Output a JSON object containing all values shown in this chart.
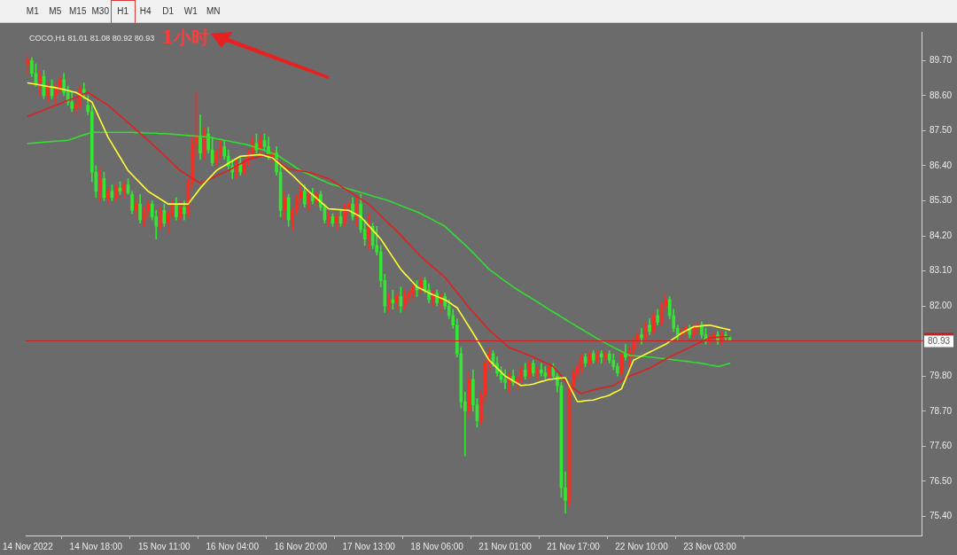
{
  "chart_data": {
    "type": "candlestick",
    "title": "COCO,H1 81.01 81.08 80.92 80.93",
    "annotations": [
      "M1",
      "M5",
      "M15",
      "M30",
      "H1",
      "H4",
      "D1",
      "W1",
      "MN",
      "1小时"
    ],
    "categories": [
      "14 Nov 2022",
      null,
      null,
      null,
      null,
      null,
      null,
      null,
      null,
      null,
      null,
      null,
      null,
      null,
      null,
      null,
      null,
      "14 Nov 18:00",
      null,
      null,
      null,
      null,
      null,
      null,
      null,
      null,
      null,
      null,
      null,
      null,
      null,
      null,
      null,
      null,
      "15 Nov 11:00",
      null,
      null,
      null,
      null,
      null,
      null,
      null,
      null,
      null,
      null,
      null,
      null,
      null,
      null,
      null,
      null,
      "16 Nov 04:00",
      null,
      null,
      null,
      null,
      null,
      null,
      null,
      null,
      null,
      null,
      null,
      null,
      null,
      null,
      null,
      null,
      "16 Nov 20:00",
      null,
      null,
      null,
      null,
      null,
      null,
      null,
      null,
      null,
      null,
      null,
      null,
      null,
      null,
      null,
      null,
      "17 Nov 13:00",
      null,
      null,
      null,
      null,
      null,
      null,
      null,
      null,
      null,
      null,
      null,
      null,
      null,
      null,
      null,
      null,
      "18 Nov 06:00",
      null,
      null,
      null,
      null,
      null,
      null,
      null,
      null,
      null,
      null,
      null,
      null,
      null,
      null,
      null,
      null,
      "21 Nov 01:00",
      null,
      null,
      null,
      null,
      null,
      null,
      null,
      null,
      null,
      null,
      null,
      null,
      null,
      null,
      null,
      null,
      "21 Nov 17:00",
      null,
      null,
      null,
      null,
      null,
      null,
      null,
      null,
      null,
      null,
      null,
      null,
      null,
      null,
      null,
      null,
      "22 Nov 10:00",
      null,
      null,
      null,
      null,
      null,
      null,
      null,
      null,
      null,
      null,
      null,
      null,
      null,
      null,
      null,
      null,
      "23 Nov 03:00",
      null,
      null,
      null,
      null,
      null
    ],
    "ohlc": [
      [
        89.6,
        89.9,
        89.3,
        89.7
      ],
      [
        89.7,
        89.8,
        89.2,
        89.3
      ],
      [
        89.3,
        89.6,
        88.9,
        89.0
      ],
      [
        89.0,
        89.4,
        88.6,
        89.2
      ],
      [
        89.2,
        89.4,
        88.5,
        88.6
      ],
      [
        88.6,
        89.0,
        88.4,
        88.9
      ],
      [
        88.9,
        89.1,
        88.5,
        88.6
      ],
      [
        88.6,
        89.0,
        88.3,
        88.8
      ],
      [
        88.8,
        89.2,
        88.7,
        89.1
      ],
      [
        89.1,
        89.3,
        88.6,
        88.7
      ],
      [
        88.7,
        88.9,
        88.3,
        88.4
      ],
      [
        88.4,
        88.7,
        88.1,
        88.2
      ],
      [
        88.2,
        88.5,
        88.0,
        88.3
      ],
      [
        88.3,
        88.9,
        88.2,
        88.8
      ],
      [
        88.8,
        89.0,
        88.5,
        88.7
      ],
      [
        88.3,
        88.6,
        88.0,
        88.1
      ],
      [
        88.1,
        88.3,
        85.9,
        86.2
      ],
      [
        86.2,
        86.4,
        85.4,
        85.6
      ],
      [
        85.6,
        86.3,
        85.3,
        86.0
      ],
      [
        86.0,
        86.2,
        85.3,
        85.4
      ],
      [
        85.4,
        85.7,
        85.2,
        85.6
      ],
      [
        85.6,
        85.8,
        85.3,
        85.4
      ],
      [
        85.4,
        85.8,
        85.3,
        85.7
      ],
      [
        85.7,
        85.9,
        85.5,
        85.6
      ],
      [
        85.6,
        85.9,
        85.4,
        85.8
      ],
      [
        85.8,
        86.0,
        85.5,
        85.55
      ],
      [
        85.5,
        85.6,
        84.9,
        85.0
      ],
      [
        85.0,
        85.4,
        84.8,
        85.2
      ],
      [
        85.2,
        85.5,
        84.6,
        84.7
      ],
      [
        84.7,
        85.1,
        84.5,
        85.0
      ],
      [
        85.0,
        85.3,
        84.8,
        85.2
      ],
      [
        85.2,
        85.3,
        84.7,
        84.8
      ],
      [
        84.8,
        85.0,
        84.1,
        84.5
      ],
      [
        84.5,
        85.1,
        84.4,
        85.0
      ],
      [
        85.0,
        85.2,
        84.5,
        84.6
      ],
      [
        84.6,
        85.0,
        84.3,
        84.9
      ],
      [
        84.9,
        85.3,
        84.8,
        85.2
      ],
      [
        85.2,
        85.4,
        84.7,
        84.8
      ],
      [
        84.8,
        85.3,
        84.6,
        85.1
      ],
      [
        85.1,
        85.3,
        84.7,
        84.9
      ],
      [
        84.9,
        86.0,
        84.8,
        85.9
      ],
      [
        85.9,
        87.3,
        85.7,
        87.1
      ],
      [
        87.1,
        88.7,
        86.7,
        87.3
      ],
      [
        87.3,
        88.0,
        86.6,
        86.8
      ],
      [
        86.8,
        87.6,
        86.6,
        87.4
      ],
      [
        87.4,
        87.6,
        86.8,
        86.9
      ],
      [
        86.9,
        87.3,
        86.4,
        86.5
      ],
      [
        86.5,
        86.9,
        86.4,
        86.8
      ],
      [
        86.8,
        87.2,
        86.6,
        87.0
      ],
      [
        87.0,
        87.2,
        86.6,
        86.7
      ],
      [
        86.7,
        86.9,
        86.3,
        86.4
      ],
      [
        86.4,
        86.6,
        86.0,
        86.2
      ],
      [
        86.2,
        86.6,
        86.0,
        86.5
      ],
      [
        86.5,
        86.7,
        86.1,
        86.2
      ],
      [
        86.2,
        86.6,
        86.1,
        86.5
      ],
      [
        86.5,
        86.9,
        86.4,
        86.8
      ],
      [
        86.8,
        87.3,
        86.6,
        87.1
      ],
      [
        87.1,
        87.4,
        86.8,
        86.9
      ],
      [
        86.9,
        87.4,
        86.7,
        87.2
      ],
      [
        87.2,
        87.4,
        86.9,
        87.0
      ],
      [
        87.0,
        87.3,
        86.6,
        86.7
      ],
      [
        86.7,
        86.9,
        86.5,
        86.8
      ],
      [
        86.8,
        87.0,
        86.1,
        86.2
      ],
      [
        86.2,
        86.4,
        84.8,
        85.0
      ],
      [
        85.0,
        85.6,
        84.7,
        85.4
      ],
      [
        85.4,
        85.5,
        84.5,
        84.7
      ],
      [
        84.7,
        85.1,
        84.4,
        85.0
      ],
      [
        85.0,
        85.5,
        84.9,
        85.4
      ],
      [
        85.4,
        85.8,
        85.2,
        85.6
      ],
      [
        85.6,
        85.8,
        85.1,
        85.2
      ],
      [
        85.2,
        85.6,
        85.0,
        85.5
      ],
      [
        85.5,
        85.7,
        85.2,
        85.3
      ],
      [
        85.3,
        85.6,
        85.1,
        85.5
      ],
      [
        85.5,
        85.6,
        85.0,
        85.1
      ],
      [
        85.1,
        85.2,
        84.6,
        84.7
      ],
      [
        84.7,
        85.0,
        84.5,
        84.8
      ],
      [
        84.8,
        84.9,
        84.5,
        84.6
      ],
      [
        84.6,
        84.9,
        84.4,
        84.8
      ],
      [
        84.8,
        85.0,
        84.5,
        84.6
      ],
      [
        84.6,
        85.2,
        84.5,
        85.1
      ],
      [
        85.1,
        85.3,
        84.9,
        85.2
      ],
      [
        85.2,
        85.4,
        84.7,
        84.8
      ],
      [
        84.8,
        85.4,
        84.5,
        85.2
      ],
      [
        85.2,
        85.5,
        84.3,
        84.4
      ],
      [
        84.4,
        84.7,
        83.9,
        84.1
      ],
      [
        84.1,
        84.9,
        83.8,
        84.5
      ],
      [
        84.5,
        84.6,
        83.8,
        83.9
      ],
      [
        83.9,
        84.5,
        83.6,
        83.7
      ],
      [
        83.7,
        83.9,
        82.6,
        82.8
      ],
      [
        82.8,
        83.0,
        81.8,
        82.0
      ],
      [
        82.0,
        82.4,
        81.8,
        82.2
      ],
      [
        82.2,
        82.5,
        81.9,
        82.1
      ],
      [
        82.1,
        82.4,
        81.9,
        82.3
      ],
      [
        82.3,
        82.6,
        81.8,
        82.0
      ],
      [
        82.0,
        82.5,
        81.9,
        82.3
      ],
      [
        82.3,
        82.5,
        82.1,
        82.4
      ],
      [
        82.4,
        82.7,
        82.2,
        82.6
      ],
      [
        82.6,
        82.8,
        82.3,
        82.5
      ],
      [
        82.5,
        82.9,
        82.4,
        82.8
      ],
      [
        82.8,
        82.9,
        82.4,
        82.5
      ],
      [
        82.5,
        82.7,
        82.1,
        82.2
      ],
      [
        82.2,
        82.5,
        82.0,
        82.4
      ],
      [
        82.4,
        82.5,
        82.0,
        82.1
      ],
      [
        82.1,
        82.4,
        81.8,
        82.3
      ],
      [
        82.3,
        82.4,
        81.9,
        82.0
      ],
      [
        82.0,
        82.2,
        81.6,
        81.7
      ],
      [
        81.7,
        81.9,
        81.3,
        81.4
      ],
      [
        81.4,
        81.6,
        80.4,
        80.5
      ],
      [
        80.5,
        80.7,
        78.8,
        79.0
      ],
      [
        79.0,
        79.3,
        77.3,
        78.7
      ],
      [
        78.7,
        79.9,
        78.5,
        79.7
      ],
      [
        79.7,
        80.0,
        78.7,
        78.9
      ],
      [
        78.9,
        79.1,
        78.2,
        78.4
      ],
      [
        78.4,
        79.3,
        78.3,
        79.2
      ],
      [
        79.2,
        80.3,
        79.0,
        80.2
      ],
      [
        80.2,
        80.7,
        80.0,
        80.5
      ],
      [
        80.5,
        80.6,
        80.1,
        80.2
      ],
      [
        80.2,
        80.4,
        79.8,
        79.9
      ],
      [
        79.9,
        80.1,
        79.6,
        79.7
      ],
      [
        79.7,
        80.0,
        79.4,
        79.6
      ],
      [
        79.6,
        79.9,
        79.3,
        79.8
      ],
      [
        79.8,
        80.0,
        79.5,
        79.6
      ],
      [
        79.6,
        79.8,
        79.4,
        79.7
      ],
      [
        79.7,
        80.1,
        79.6,
        80.0
      ],
      [
        80.0,
        80.2,
        79.7,
        79.8
      ],
      [
        79.8,
        80.3,
        79.7,
        80.2
      ],
      [
        80.2,
        80.3,
        79.8,
        79.9
      ],
      [
        79.9,
        80.1,
        79.7,
        80.0
      ],
      [
        80.0,
        80.2,
        79.8,
        79.9
      ],
      [
        79.9,
        80.1,
        79.7,
        79.8
      ],
      [
        79.8,
        80.2,
        79.7,
        80.1
      ],
      [
        80.1,
        80.2,
        79.7,
        79.8
      ],
      [
        79.8,
        79.9,
        79.3,
        79.5
      ],
      [
        79.5,
        79.6,
        76.0,
        76.3
      ],
      [
        76.3,
        76.8,
        75.5,
        75.9
      ],
      [
        75.9,
        79.6,
        75.7,
        79.5
      ],
      [
        79.5,
        80.0,
        79.3,
        79.9
      ],
      [
        79.9,
        80.2,
        79.7,
        80.1
      ],
      [
        80.1,
        80.5,
        79.9,
        80.4
      ],
      [
        80.4,
        80.5,
        80.1,
        80.2
      ],
      [
        80.2,
        80.6,
        80.1,
        80.5
      ],
      [
        80.5,
        80.6,
        80.2,
        80.3
      ],
      [
        80.3,
        80.6,
        80.2,
        80.5
      ],
      [
        80.5,
        80.6,
        80.2,
        80.4
      ],
      [
        80.4,
        80.6,
        80.2,
        80.5
      ],
      [
        80.5,
        80.6,
        80.2,
        80.3
      ],
      [
        80.3,
        80.5,
        80.0,
        80.1
      ],
      [
        80.1,
        80.2,
        79.8,
        79.9
      ],
      [
        79.9,
        80.6,
        79.8,
        80.5
      ],
      [
        80.5,
        80.8,
        80.3,
        80.4
      ],
      [
        80.4,
        80.7,
        80.0,
        80.6
      ],
      [
        80.6,
        81.0,
        80.4,
        80.9
      ],
      [
        80.9,
        81.2,
        80.7,
        81.1
      ],
      [
        81.1,
        81.3,
        80.8,
        81.0
      ],
      [
        81.0,
        81.5,
        80.9,
        81.4
      ],
      [
        81.4,
        81.6,
        81.1,
        81.2
      ],
      [
        81.2,
        81.8,
        81.1,
        81.7
      ],
      [
        81.7,
        81.9,
        81.4,
        81.5
      ],
      [
        81.5,
        82.1,
        81.4,
        82.0
      ],
      [
        82.0,
        82.4,
        81.9,
        82.2
      ],
      [
        82.2,
        82.3,
        81.6,
        81.7
      ],
      [
        81.7,
        81.9,
        81.2,
        81.3
      ],
      [
        81.3,
        81.4,
        80.9,
        81.1
      ],
      [
        81.1,
        81.3,
        80.9,
        81.2
      ],
      [
        81.2,
        81.4,
        81.0,
        81.3
      ],
      [
        81.3,
        81.4,
        81.0,
        81.1
      ],
      [
        81.1,
        81.4,
        81.0,
        81.3
      ],
      [
        81.3,
        81.5,
        81.1,
        81.4
      ],
      [
        81.4,
        81.5,
        81.0,
        81.1
      ],
      [
        81.1,
        81.3,
        80.8,
        80.9
      ],
      [
        80.9,
        81.1,
        80.8,
        81.0
      ],
      [
        81.0,
        81.2,
        80.9,
        81.1
      ],
      [
        81.1,
        81.2,
        80.8,
        80.9
      ],
      [
        80.9,
        81.2,
        80.8,
        81.1
      ],
      [
        81.1,
        81.2,
        80.9,
        81.01
      ],
      [
        81.01,
        81.08,
        80.92,
        80.93
      ]
    ],
    "colors": [
      "#ff2b1f",
      "#33e633",
      "#33e633",
      "#ff2b1f",
      "#33e633",
      "#ff2b1f",
      "#33e633",
      "#ff2b1f",
      "#ff2b1f",
      "#33e633",
      "#33e633",
      "#33e633",
      "#ff2b1f",
      "#ff2b1f",
      "#33e633",
      "#33e633",
      "#33e633",
      "#33e633",
      "#ff2b1f",
      "#33e633",
      "#ff2b1f",
      "#33e633",
      "#ff2b1f",
      "#33e633",
      "#ff2b1f",
      "#33e633",
      "#33e633",
      "#ff2b1f",
      "#33e633",
      "#ff2b1f",
      "#ff2b1f",
      "#33e633",
      "#33e633",
      "#ff2b1f",
      "#33e633",
      "#ff2b1f",
      "#ff2b1f",
      "#33e633",
      "#ff2b1f",
      "#33e633",
      "#ff2b1f",
      "#ff2b1f",
      "#ff2b1f",
      "#33e633",
      "#ff2b1f",
      "#33e633",
      "#33e633",
      "#ff2b1f",
      "#ff2b1f",
      "#33e633",
      "#33e633",
      "#33e633",
      "#ff2b1f",
      "#33e633",
      "#ff2b1f",
      "#ff2b1f",
      "#ff2b1f",
      "#33e633",
      "#ff2b1f",
      "#33e633",
      "#33e633",
      "#ff2b1f",
      "#33e633",
      "#33e633",
      "#ff2b1f",
      "#33e633",
      "#ff2b1f",
      "#ff2b1f",
      "#ff2b1f",
      "#33e633",
      "#ff2b1f",
      "#33e633",
      "#ff2b1f",
      "#33e633",
      "#33e633",
      "#ff2b1f",
      "#33e633",
      "#ff2b1f",
      "#33e633",
      "#ff2b1f",
      "#ff2b1f",
      "#33e633",
      "#ff2b1f",
      "#33e633",
      "#33e633",
      "#ff2b1f",
      "#33e633",
      "#33e633",
      "#33e633",
      "#33e633",
      "#ff2b1f",
      "#33e633",
      "#ff2b1f",
      "#33e633",
      "#ff2b1f",
      "#ff2b1f",
      "#ff2b1f",
      "#33e633",
      "#ff2b1f",
      "#33e633",
      "#33e633",
      "#ff2b1f",
      "#33e633",
      "#ff2b1f",
      "#33e633",
      "#33e633",
      "#33e633",
      "#33e633",
      "#33e633",
      "#33e633",
      "#ff2b1f",
      "#33e633",
      "#33e633",
      "#ff2b1f",
      "#ff2b1f",
      "#ff2b1f",
      "#33e633",
      "#33e633",
      "#33e633",
      "#33e633",
      "#ff2b1f",
      "#33e633",
      "#ff2b1f",
      "#ff2b1f",
      "#33e633",
      "#ff2b1f",
      "#33e633",
      "#ff2b1f",
      "#33e633",
      "#33e633",
      "#ff2b1f",
      "#33e633",
      "#33e633",
      "#33e633",
      "#33e633",
      "#ff2b1f",
      "#ff2b1f",
      "#ff2b1f",
      "#ff2b1f",
      "#33e633",
      "#ff2b1f",
      "#33e633",
      "#ff2b1f",
      "#33e633",
      "#ff2b1f",
      "#33e633",
      "#33e633",
      "#33e633",
      "#ff2b1f",
      "#33e633",
      "#ff2b1f",
      "#ff2b1f",
      "#ff2b1f",
      "#33e633",
      "#ff2b1f",
      "#33e633",
      "#ff2b1f",
      "#33e633",
      "#ff2b1f",
      "#ff2b1f",
      "#33e633",
      "#33e633",
      "#33e633",
      "#ff2b1f",
      "#ff2b1f",
      "#33e633",
      "#ff2b1f",
      "#ff2b1f",
      "#33e633",
      "#33e633",
      "#ff2b1f",
      "#ff2b1f",
      "#33e633",
      "#ff2b1f",
      "#33e633",
      "#33e633"
    ],
    "series": [
      {
        "type": "line",
        "color": "#ffff33",
        "values": [
          89.0,
          88.98,
          88.96,
          88.94,
          88.91,
          88.89,
          88.87,
          88.85,
          88.82,
          88.79,
          88.76,
          88.73,
          88.7,
          88.63,
          88.55,
          88.48,
          88.4,
          88.13,
          87.85,
          87.58,
          87.3,
          87.09,
          86.88,
          86.67,
          86.46,
          86.25,
          86.12,
          85.99,
          85.86,
          85.73,
          85.6,
          85.52,
          85.44,
          85.36,
          85.28,
          85.2,
          85.2,
          85.2,
          85.2,
          85.2,
          85.2,
          85.37,
          85.53,
          85.7,
          85.84,
          85.98,
          86.11,
          86.25,
          86.33,
          86.4,
          86.48,
          86.55,
          86.63,
          86.7,
          86.71,
          86.72,
          86.73,
          86.74,
          86.75,
          86.72,
          86.68,
          86.65,
          86.54,
          86.43,
          86.32,
          86.21,
          86.1,
          85.98,
          85.85,
          85.73,
          85.6,
          85.49,
          85.38,
          85.27,
          85.16,
          85.05,
          85.04,
          85.03,
          85.02,
          85.01,
          85.0,
          84.93,
          84.87,
          84.8,
          84.66,
          84.52,
          84.38,
          84.24,
          84.1,
          83.91,
          83.72,
          83.53,
          83.34,
          83.15,
          83.01,
          82.88,
          82.74,
          82.6,
          82.54,
          82.48,
          82.41,
          82.35,
          82.3,
          82.25,
          82.2,
          82.12,
          82.03,
          81.95,
          81.75,
          81.55,
          81.35,
          81.15,
          80.94,
          80.73,
          80.51,
          80.3,
          80.18,
          80.05,
          79.93,
          79.8,
          79.73,
          79.65,
          79.58,
          79.5,
          79.52,
          79.53,
          79.55,
          79.59,
          79.63,
          79.66,
          79.7,
          79.71,
          79.73,
          79.74,
          79.75,
          79.5,
          79.25,
          79.0,
          79.01,
          79.03,
          79.04,
          79.05,
          79.09,
          79.13,
          79.16,
          79.2,
          79.27,
          79.33,
          79.4,
          79.7,
          80.0,
          80.3,
          80.36,
          80.43,
          80.49,
          80.55,
          80.61,
          80.68,
          80.74,
          80.8,
          80.89,
          80.98,
          81.06,
          81.15,
          81.22,
          81.28,
          81.35,
          81.36,
          81.38,
          81.39,
          81.4,
          81.37,
          81.34,
          81.31,
          81.28,
          81.25
        ]
      },
      {
        "type": "line",
        "color": "#e02020",
        "values": [
          87.95,
          88.0,
          88.05,
          88.1,
          88.15,
          88.2,
          88.25,
          88.3,
          88.35,
          88.4,
          88.45,
          88.5,
          88.55,
          88.6,
          88.65,
          88.7,
          88.62,
          88.54,
          88.46,
          88.38,
          88.3,
          88.19,
          88.08,
          87.97,
          87.86,
          87.75,
          87.64,
          87.53,
          87.42,
          87.31,
          87.2,
          87.08,
          86.96,
          86.84,
          86.73,
          86.61,
          86.49,
          86.37,
          86.25,
          86.17,
          86.09,
          86.01,
          85.93,
          85.85,
          85.91,
          85.96,
          86.02,
          86.08,
          86.14,
          86.19,
          86.25,
          86.32,
          86.39,
          86.46,
          86.53,
          86.6,
          86.63,
          86.66,
          86.69,
          86.72,
          86.75,
          86.66,
          86.57,
          86.48,
          86.39,
          86.3,
          86.28,
          86.26,
          86.24,
          86.22,
          86.2,
          86.16,
          86.12,
          86.08,
          86.04,
          86.0,
          85.92,
          85.84,
          85.76,
          85.68,
          85.6,
          85.52,
          85.44,
          85.36,
          85.28,
          85.2,
          85.08,
          84.96,
          84.84,
          84.71,
          84.59,
          84.47,
          84.35,
          84.22,
          84.08,
          83.95,
          83.82,
          83.68,
          83.55,
          83.44,
          83.33,
          83.22,
          83.12,
          83.01,
          82.9,
          82.74,
          82.58,
          82.43,
          82.27,
          82.11,
          81.95,
          81.81,
          81.67,
          81.53,
          81.39,
          81.25,
          81.14,
          81.03,
          80.92,
          80.81,
          80.7,
          80.65,
          80.6,
          80.55,
          80.5,
          80.45,
          80.4,
          80.34,
          80.28,
          80.22,
          80.16,
          80.1,
          79.95,
          79.8,
          79.65,
          79.5,
          79.42,
          79.33,
          79.25,
          79.29,
          79.33,
          79.36,
          79.4,
          79.43,
          79.45,
          79.48,
          79.5,
          79.58,
          79.65,
          79.73,
          79.8,
          79.85,
          79.9,
          79.95,
          80.0,
          80.05,
          80.12,
          80.19,
          80.26,
          80.33,
          80.4,
          80.46,
          80.52,
          80.58,
          80.64,
          80.7,
          80.76,
          80.82,
          80.88,
          80.94,
          81.0,
          81.01,
          81.02,
          81.03,
          81.04,
          81.05
        ]
      },
      {
        "type": "line",
        "color": "#33dd33",
        "values": [
          87.1,
          87.11,
          87.12,
          87.13,
          87.14,
          87.15,
          87.16,
          87.17,
          87.18,
          87.19,
          87.2,
          87.24,
          87.28,
          87.33,
          87.37,
          87.41,
          87.45,
          87.45,
          87.45,
          87.45,
          87.45,
          87.45,
          87.45,
          87.45,
          87.45,
          87.45,
          87.45,
          87.44,
          87.44,
          87.43,
          87.43,
          87.42,
          87.42,
          87.41,
          87.41,
          87.4,
          87.39,
          87.38,
          87.37,
          87.36,
          87.35,
          87.34,
          87.33,
          87.32,
          87.31,
          87.3,
          87.28,
          87.25,
          87.23,
          87.2,
          87.18,
          87.15,
          87.13,
          87.1,
          87.08,
          87.05,
          87.01,
          86.96,
          86.92,
          86.88,
          86.84,
          86.79,
          86.75,
          86.67,
          86.58,
          86.5,
          86.42,
          86.33,
          86.25,
          86.19,
          86.14,
          86.08,
          86.02,
          85.96,
          85.91,
          85.85,
          85.81,
          85.78,
          85.74,
          85.71,
          85.67,
          85.64,
          85.6,
          85.56,
          85.53,
          85.49,
          85.45,
          85.41,
          85.38,
          85.34,
          85.3,
          85.25,
          85.2,
          85.15,
          85.1,
          85.05,
          85.0,
          84.95,
          84.9,
          84.83,
          84.77,
          84.7,
          84.63,
          84.57,
          84.5,
          84.38,
          84.27,
          84.15,
          84.03,
          83.92,
          83.8,
          83.67,
          83.54,
          83.41,
          83.28,
          83.15,
          83.06,
          82.97,
          82.87,
          82.78,
          82.69,
          82.6,
          82.52,
          82.44,
          82.36,
          82.29,
          82.21,
          82.13,
          82.05,
          81.97,
          81.89,
          81.81,
          81.74,
          81.66,
          81.58,
          81.5,
          81.43,
          81.35,
          81.28,
          81.2,
          81.13,
          81.05,
          80.98,
          80.91,
          80.84,
          80.77,
          80.7,
          80.64,
          80.58,
          80.51,
          80.45,
          80.44,
          80.43,
          80.42,
          80.41,
          80.4,
          80.39,
          80.37,
          80.36,
          80.34,
          80.33,
          80.31,
          80.3,
          80.28,
          80.27,
          80.25,
          80.23,
          80.22,
          80.2,
          80.18,
          80.15,
          80.13,
          80.1,
          80.13,
          80.17,
          80.2
        ]
      }
    ],
    "ylim": [
      74.8,
      90.6
    ],
    "yticks": [
      {
        "value": 89.7,
        "label": "89.70"
      },
      {
        "value": 88.6,
        "label": "88.60"
      },
      {
        "value": 87.5,
        "label": "87.50"
      },
      {
        "value": 86.4,
        "label": "86.40"
      },
      {
        "value": 85.3,
        "label": "85.30"
      },
      {
        "value": 84.2,
        "label": "84.20"
      },
      {
        "value": 83.1,
        "label": "83.10"
      },
      {
        "value": 82.0,
        "label": "82.00"
      },
      {
        "value": 79.8,
        "label": "79.80"
      },
      {
        "value": 78.7,
        "label": "78.70"
      },
      {
        "value": 77.6,
        "label": "77.60"
      },
      {
        "value": 76.5,
        "label": "76.50"
      },
      {
        "value": 75.4,
        "label": "75.40"
      }
    ],
    "ref_lines": [
      {
        "axis": "y",
        "value": 80.93,
        "label": "80.93",
        "color": "#c81e1e"
      }
    ]
  }
}
